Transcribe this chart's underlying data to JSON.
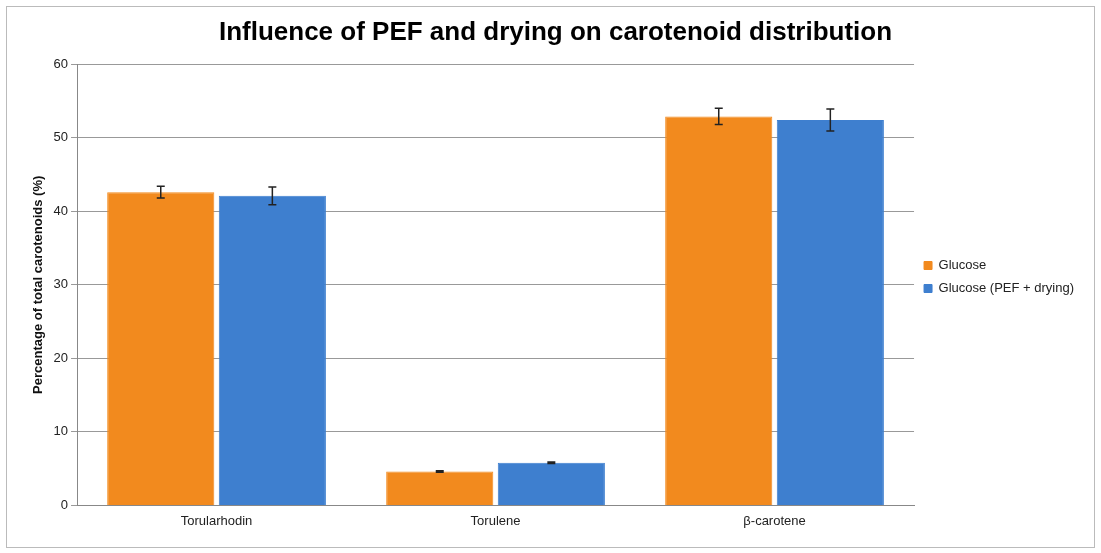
{
  "chart_data": {
    "type": "bar",
    "title": "Influence of PEF and drying on carotenoid distribution",
    "ylabel": "Percentage of total carotenoids (%)",
    "categories": [
      "Torularhodin",
      "Torulene",
      "β-carotene"
    ],
    "series": [
      {
        "name": "Glucose",
        "color": "#f28a1e",
        "values": [
          42.6,
          4.6,
          52.9
        ],
        "errors": [
          0.8,
          0.1,
          1.1
        ]
      },
      {
        "name": "Glucose (PEF + drying)",
        "color": "#3e7fcf",
        "values": [
          42.1,
          5.8,
          52.4
        ],
        "errors": [
          1.2,
          0.1,
          1.5
        ]
      }
    ],
    "ylim": [
      0,
      60
    ],
    "yticks": [
      0,
      10,
      20,
      30,
      40,
      50,
      60
    ],
    "grid": "y",
    "legend": "right"
  }
}
